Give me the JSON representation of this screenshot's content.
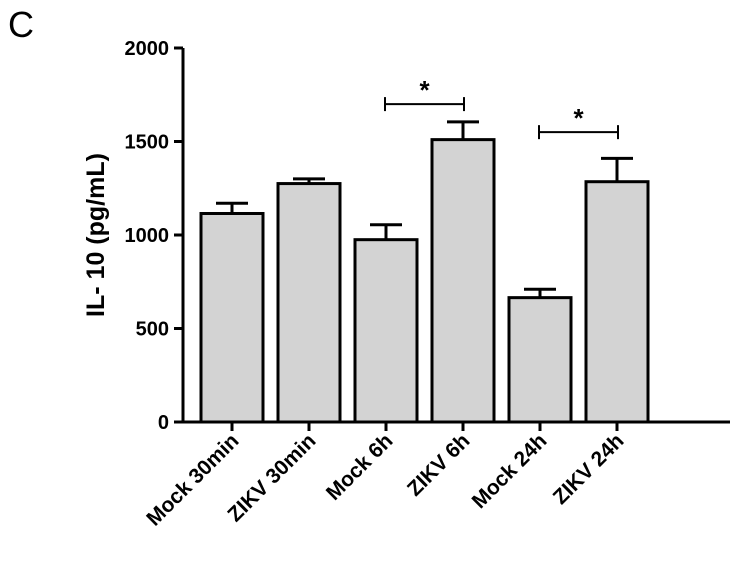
{
  "panel_label": "C",
  "chart_data": {
    "type": "bar",
    "title": "",
    "xlabel": "",
    "ylabel": "IL- 10 (pg/mL)",
    "ylim": [
      0,
      2000
    ],
    "yticks": [
      0,
      500,
      1000,
      1500,
      2000
    ],
    "ytick_labels": [
      "0",
      "500",
      "1000",
      "1500",
      "2000"
    ],
    "categories": [
      "Mock 30min",
      "ZIKV 30min",
      "Mock 6h",
      "ZIKV 6h",
      "Mock 24h",
      "ZIKV 24h"
    ],
    "values": [
      1115,
      1275,
      975,
      1510,
      665,
      1285
    ],
    "errors": [
      55,
      25,
      80,
      95,
      45,
      125
    ],
    "grid": false,
    "bar_color": "#d3d3d3",
    "significance": [
      {
        "from": 2,
        "to": 3,
        "y": 1700,
        "label": "*"
      },
      {
        "from": 4,
        "to": 5,
        "y": 1550,
        "label": "*"
      }
    ]
  }
}
